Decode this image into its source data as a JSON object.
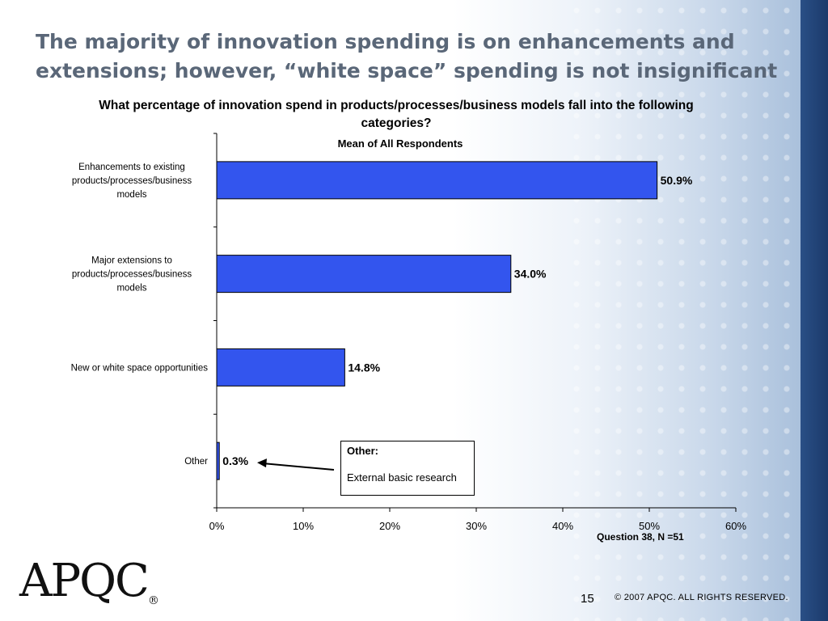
{
  "slide": {
    "title": "The majority of innovation spending is on enhancements and extensions; however, “white space” spending is not insignificant",
    "page_number": "15",
    "copyright": "© 2007 APQC.   ALL RIGHTS RESERVED.",
    "logo_text": "APQC",
    "logo_mark": "®",
    "note": "Question 38, N =51"
  },
  "callout": {
    "title": "Other:",
    "body": "External basic research"
  },
  "chart_data": {
    "type": "bar",
    "orientation": "horizontal",
    "title": "What percentage of innovation spend in products/processes/business models fall into the following categories?",
    "subtitle": "Mean of All Respondents",
    "categories": [
      [
        "Enhancements to existing",
        "products/processes/business",
        "models"
      ],
      [
        "Major extensions to",
        "products/processes/business",
        "models"
      ],
      [
        "New or white space opportunities"
      ],
      [
        "Other"
      ]
    ],
    "values": [
      50.9,
      34.0,
      14.8,
      0.3
    ],
    "data_labels": [
      "50.9%",
      "34.0%",
      "14.8%",
      "0.3%"
    ],
    "x_ticks": [
      "0%",
      "10%",
      "20%",
      "30%",
      "40%",
      "50%",
      "60%"
    ],
    "xlim": [
      0,
      60
    ],
    "grid": false,
    "legend": "none",
    "bar_color": "#3355ee"
  }
}
